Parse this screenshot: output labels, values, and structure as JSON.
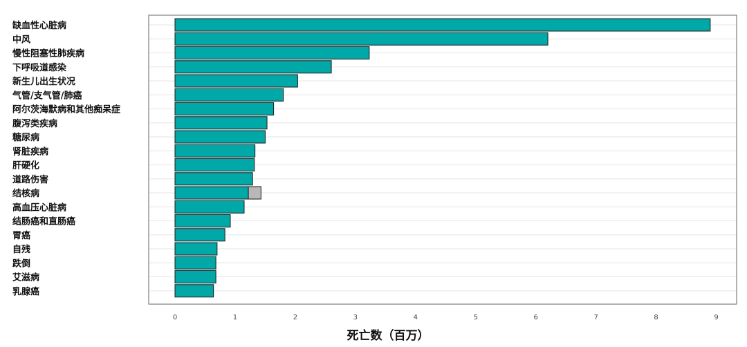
{
  "chart_data": {
    "type": "bar",
    "orientation": "horizontal",
    "xlabel": "死亡数（百万）",
    "xlim": [
      0,
      9.3
    ],
    "xticks": [
      0,
      1,
      2,
      3,
      4,
      5,
      6,
      7,
      8,
      9
    ],
    "grid": true,
    "categories": [
      "缺血性心脏病",
      "中风",
      "慢性阻塞性肺疾病",
      "下呼吸道感染",
      "新生儿出生状况",
      "气管/支气管/肺癌",
      "阿尔茨海默病和其他痴呆症",
      "腹泻类疾病",
      "糖尿病",
      "肾脏疾病",
      "肝硬化",
      "道路伤害",
      "结核病",
      "高血压心脏病",
      "结肠癌和直肠癌",
      "胃癌",
      "自残",
      "跌倒",
      "艾滋病",
      "乳腺癌"
    ],
    "series": [
      {
        "values": [
          8.9,
          6.2,
          3.23,
          2.6,
          2.04,
          1.8,
          1.64,
          1.53,
          1.5,
          1.33,
          1.32,
          1.29,
          1.22,
          1.15,
          0.92,
          0.83,
          0.7,
          0.68,
          0.68,
          0.64
        ],
        "color": "#00a8a8"
      },
      {
        "values": [
          0,
          0,
          0,
          0,
          0,
          0,
          0,
          0,
          0,
          0,
          0,
          0,
          0.21,
          0,
          0,
          0,
          0,
          0,
          0,
          0
        ],
        "color": "#b8b8b8"
      }
    ]
  }
}
